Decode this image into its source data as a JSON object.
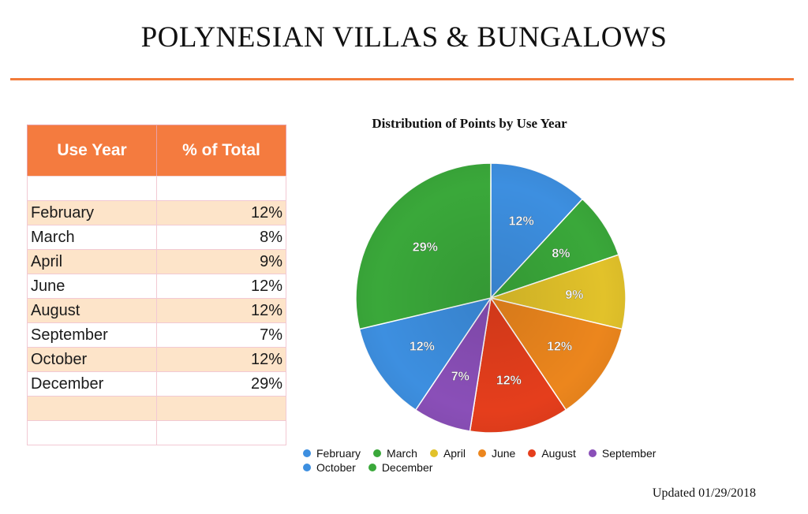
{
  "page": {
    "title": "POLYNESIAN VILLAS & BUNGALOWS",
    "updated": "Updated 01/29/2018"
  },
  "table": {
    "headers": [
      "Use Year",
      "% of Total"
    ],
    "rows": [
      {
        "month": "",
        "pct": ""
      },
      {
        "month": "February",
        "pct": "12%"
      },
      {
        "month": "March",
        "pct": "8%"
      },
      {
        "month": "April",
        "pct": "9%"
      },
      {
        "month": "June",
        "pct": "12%"
      },
      {
        "month": "August",
        "pct": "12%"
      },
      {
        "month": "September",
        "pct": "7%"
      },
      {
        "month": "October",
        "pct": "12%"
      },
      {
        "month": "December",
        "pct": "29%"
      },
      {
        "month": "",
        "pct": ""
      },
      {
        "month": "",
        "pct": ""
      }
    ]
  },
  "chart_data": {
    "type": "pie",
    "title": "Distribution of Points by Use Year",
    "categories": [
      "February",
      "March",
      "April",
      "June",
      "August",
      "September",
      "October",
      "December"
    ],
    "values": [
      12,
      8,
      9,
      12,
      12,
      7,
      12,
      29
    ],
    "data_labels": [
      "12%",
      "8%",
      "9%",
      "12%",
      "12%",
      "7%",
      "12%",
      "29%"
    ],
    "colors": [
      "#3d8fe0",
      "#3aa83a",
      "#e2c22a",
      "#ec861d",
      "#e53e1c",
      "#8a4fb8",
      "#3d8fe0",
      "#3aa83a"
    ],
    "legend_position": "bottom"
  }
}
